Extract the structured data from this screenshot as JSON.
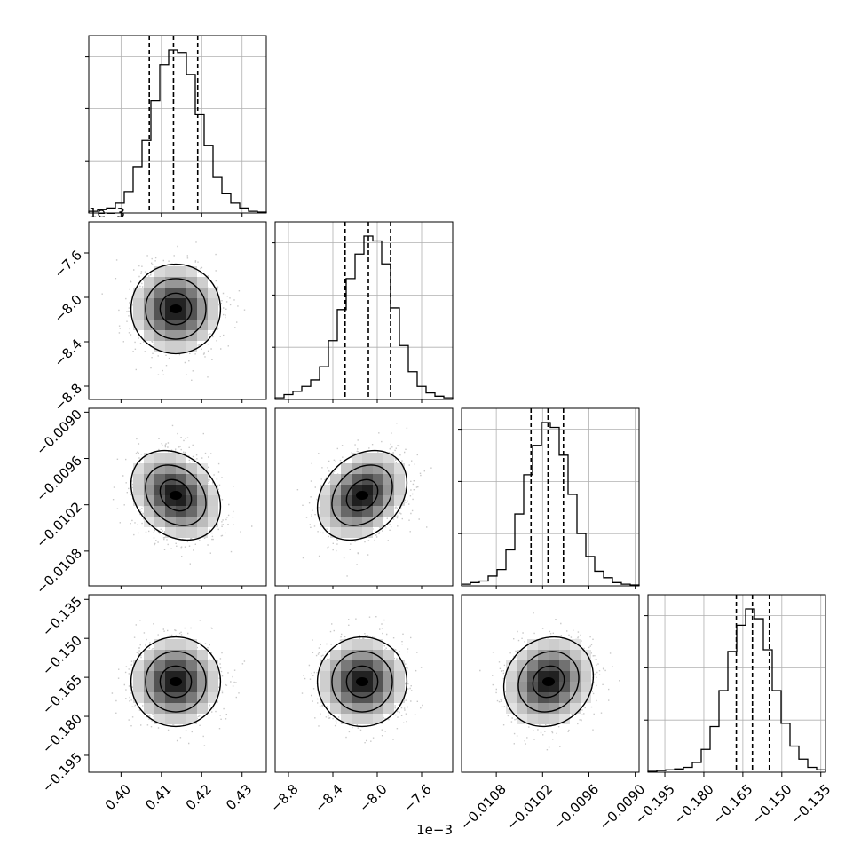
{
  "chart_data": {
    "type": "corner",
    "grid": true,
    "offset_labels": {
      "row1_y": "1e−3",
      "col1_x": "1e−3"
    },
    "params": [
      {
        "id": "p0",
        "range": [
          0.392,
          0.436
        ],
        "ticks": [
          0.4,
          0.41,
          0.42,
          0.43
        ],
        "tick_labels": [
          "0.40",
          "0.41",
          "0.42",
          "0.43"
        ],
        "quantiles": [
          0.407,
          0.413,
          0.419
        ]
      },
      {
        "id": "p1",
        "range": [
          -8.92,
          -7.32
        ],
        "ticks": [
          -8.8,
          -8.4,
          -8.0,
          -7.6
        ],
        "tick_labels": [
          "−8.8",
          "−8.4",
          "−8.0",
          "−7.6"
        ],
        "quantiles": [
          -8.29,
          -8.08,
          -7.88
        ]
      },
      {
        "id": "p2",
        "range": [
          -0.01125,
          -0.00895
        ],
        "ticks": [
          -0.0108,
          -0.0102,
          -0.0096,
          -0.009
        ],
        "tick_labels": [
          "−0.0108",
          "−0.0102",
          "−0.0096",
          "−0.0090"
        ],
        "quantiles": [
          -0.01035,
          -0.01013,
          -0.00993
        ]
      },
      {
        "id": "p3",
        "range": [
          -0.2015,
          -0.1332
        ],
        "ticks": [
          -0.195,
          -0.18,
          -0.165,
          -0.15,
          -0.135
        ],
        "tick_labels": [
          "−0.195",
          "−0.180",
          "−0.165",
          "−0.150",
          "−0.135"
        ],
        "quantiles": [
          -0.1675,
          -0.1613,
          -0.1548
        ]
      }
    ],
    "histograms": [
      [
        1,
        2,
        3,
        6,
        13,
        28,
        44,
        68,
        90,
        99,
        97,
        84,
        60,
        41,
        22,
        12,
        6,
        3,
        1,
        0.5
      ],
      [
        1,
        3,
        5,
        8,
        12,
        20,
        36,
        55,
        74,
        89,
        100,
        97,
        83,
        56,
        33,
        17,
        8,
        4,
        2,
        1
      ],
      [
        1,
        2,
        3,
        6,
        10,
        22,
        44,
        68,
        86,
        100,
        97,
        80,
        56,
        32,
        18,
        9,
        5,
        2,
        1,
        0.5
      ],
      [
        0.5,
        1,
        1.5,
        2,
        3,
        6,
        14,
        28,
        50,
        74,
        90,
        100,
        94,
        75,
        50,
        30,
        16,
        8,
        3,
        1.5
      ]
    ],
    "pairs": [
      {
        "row": 1,
        "col": 0,
        "rho": 0.0
      },
      {
        "row": 2,
        "col": 0,
        "rho": -0.25
      },
      {
        "row": 2,
        "col": 1,
        "rho": 0.28
      },
      {
        "row": 3,
        "col": 0,
        "rho": 0.0
      },
      {
        "row": 3,
        "col": 1,
        "rho": 0.0
      },
      {
        "row": 3,
        "col": 2,
        "rho": 0.12
      }
    ]
  }
}
